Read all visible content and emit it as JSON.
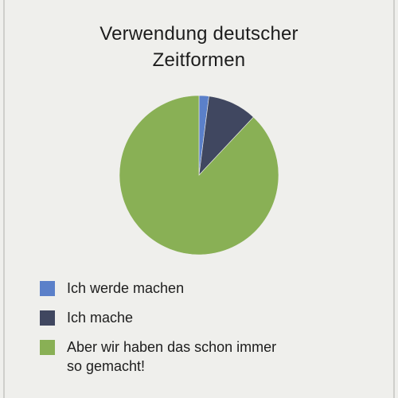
{
  "chart_data": {
    "type": "pie",
    "title": "Verwendung deutscher\nZeitformen",
    "title_lines": [
      "Verwendung deutscher",
      "Zeitformen"
    ],
    "categories": [
      "Ich werde machen",
      "Ich mache",
      "Aber wir haben das schon immer so gemacht!"
    ],
    "values": [
      2,
      10,
      88
    ],
    "colors": [
      "#5b80c9",
      "#404760",
      "#89b055"
    ],
    "legend": [
      {
        "label": "Ich werde machen",
        "color": "#5b80c9"
      },
      {
        "label": "Ich mache",
        "color": "#404760"
      },
      {
        "label": "Aber wir haben das schon immer\nso gemacht!",
        "color": "#89b055"
      }
    ],
    "legend_position": "bottom",
    "start_angle": "top, clockwise"
  }
}
